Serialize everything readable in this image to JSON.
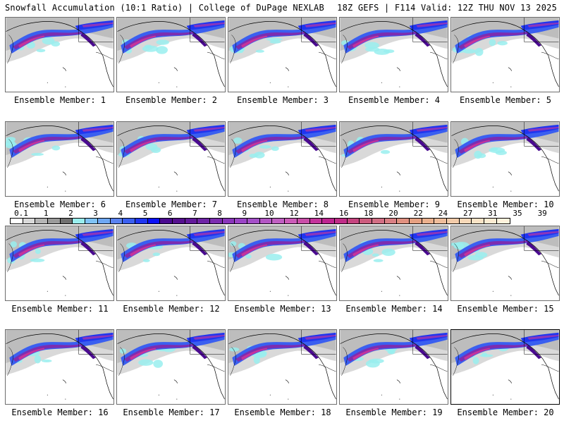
{
  "header": {
    "title_left": "Snowfall Accumulation (10:1 Ratio) | College of DuPage NEXLAB",
    "title_right": "18Z GEFS | F114 Valid: 12Z THU NOV 13 2025"
  },
  "panels": [
    {
      "label": "Ensemble Member: 1"
    },
    {
      "label": "Ensemble Member: 2"
    },
    {
      "label": "Ensemble Member: 3"
    },
    {
      "label": "Ensemble Member: 4"
    },
    {
      "label": "Ensemble Member: 5"
    },
    {
      "label": "Ensemble Member: 6"
    },
    {
      "label": "Ensemble Member: 7"
    },
    {
      "label": "Ensemble Member: 8"
    },
    {
      "label": "Ensemble Member: 9"
    },
    {
      "label": "Ensemble Member: 10"
    },
    {
      "label": "Ensemble Member: 11"
    },
    {
      "label": "Ensemble Member: 12"
    },
    {
      "label": "Ensemble Member: 13"
    },
    {
      "label": "Ensemble Member: 14"
    },
    {
      "label": "Ensemble Member: 15"
    },
    {
      "label": "Ensemble Member: 16"
    },
    {
      "label": "Ensemble Member: 17"
    },
    {
      "label": "Ensemble Member: 18"
    },
    {
      "label": "Ensemble Member: 19"
    },
    {
      "label": "Ensemble Member: 20"
    }
  ],
  "colorbar": {
    "tick_labels": [
      "0.1",
      "1",
      "2",
      "3",
      "4",
      "5",
      "6",
      "7",
      "8",
      "9",
      "10",
      "12",
      "14",
      "16",
      "18",
      "20",
      "22",
      "24",
      "27",
      "31",
      "35",
      "39"
    ],
    "colors": [
      "#ffffff",
      "#d9d9d9",
      "#b5b5b5",
      "#9a9a9a",
      "#707070",
      "#99eeee",
      "#7fc3f5",
      "#6ea7f3",
      "#5a82f0",
      "#3a5ff0",
      "#1f35f0",
      "#0a10f5",
      "#4a0a90",
      "#55108f",
      "#621a9a",
      "#6e24a5",
      "#7c2db0",
      "#8a36bb",
      "#9a44c6",
      "#a44fc8",
      "#b356c4",
      "#c05fc2",
      "#cb5bb8",
      "#c94ea8",
      "#c4339b",
      "#be2590",
      "#c02d88",
      "#c5447f",
      "#cc5c7e",
      "#d26e84",
      "#d97f84",
      "#e09080",
      "#e6a081",
      "#ebb08d",
      "#efbd9b",
      "#f3cba9",
      "#f7d8b8",
      "#fae3c6",
      "#fdecd2",
      "#fff2dc"
    ]
  }
}
